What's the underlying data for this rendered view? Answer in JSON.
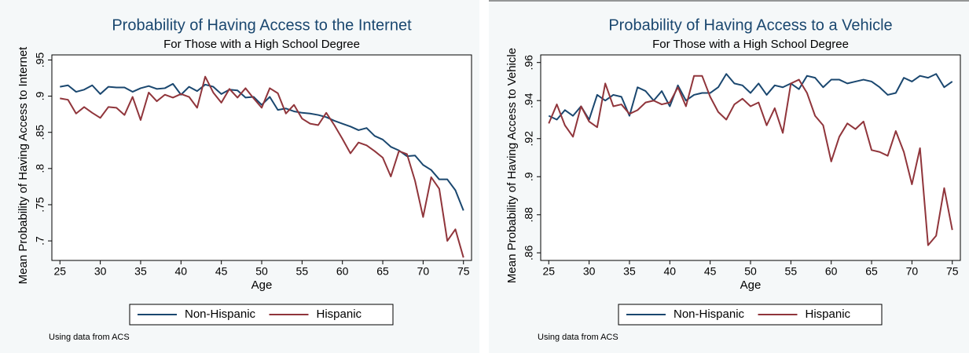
{
  "chart_data": [
    {
      "type": "line",
      "title": "Probability of Having Access to the Internet",
      "subtitle": "For Those with a High School Degree",
      "xlabel": "Age",
      "ylabel": "Mean Probability of Having Access to Internet",
      "note": "Using data from ACS",
      "x": [
        25,
        26,
        27,
        28,
        29,
        30,
        31,
        32,
        33,
        34,
        35,
        36,
        37,
        38,
        39,
        40,
        41,
        42,
        43,
        44,
        45,
        46,
        47,
        48,
        49,
        50,
        51,
        52,
        53,
        54,
        55,
        56,
        57,
        58,
        59,
        60,
        61,
        62,
        63,
        64,
        65,
        66,
        67,
        68,
        69,
        70,
        71,
        72,
        73,
        74,
        75
      ],
      "series": [
        {
          "name": "Non-Hispanic",
          "color": "#1a476f",
          "values": [
            0.913,
            0.915,
            0.906,
            0.909,
            0.915,
            0.903,
            0.913,
            0.912,
            0.912,
            0.906,
            0.911,
            0.914,
            0.91,
            0.911,
            0.917,
            0.902,
            0.913,
            0.907,
            0.916,
            0.913,
            0.903,
            0.909,
            0.908,
            0.898,
            0.899,
            0.888,
            0.899,
            0.881,
            0.883,
            0.879,
            0.877,
            0.876,
            0.874,
            0.871,
            0.866,
            0.862,
            0.858,
            0.853,
            0.856,
            0.845,
            0.84,
            0.83,
            0.825,
            0.817,
            0.818,
            0.805,
            0.798,
            0.785,
            0.785,
            0.77,
            0.742
          ]
        },
        {
          "name": "Hispanic",
          "color": "#90353b",
          "values": [
            0.897,
            0.895,
            0.876,
            0.885,
            0.877,
            0.87,
            0.885,
            0.884,
            0.874,
            0.899,
            0.867,
            0.905,
            0.893,
            0.902,
            0.898,
            0.903,
            0.899,
            0.884,
            0.927,
            0.905,
            0.891,
            0.91,
            0.898,
            0.911,
            0.897,
            0.884,
            0.911,
            0.904,
            0.876,
            0.888,
            0.869,
            0.862,
            0.86,
            0.877,
            0.86,
            0.841,
            0.821,
            0.836,
            0.832,
            0.824,
            0.815,
            0.789,
            0.824,
            0.82,
            0.783,
            0.733,
            0.788,
            0.772,
            0.7,
            0.716,
            0.677
          ]
        }
      ],
      "xlim": [
        24,
        76
      ],
      "ylim": [
        0.673,
        0.957
      ],
      "xticks": [
        25,
        30,
        35,
        40,
        45,
        50,
        55,
        60,
        65,
        70,
        75
      ],
      "yticks": [
        {
          "value": 0.7,
          "label": ".7"
        },
        {
          "value": 0.75,
          "label": ".75"
        },
        {
          "value": 0.8,
          "label": ".8"
        },
        {
          "value": 0.85,
          "label": ".85"
        },
        {
          "value": 0.9,
          "label": ".9"
        },
        {
          "value": 0.95,
          "label": ".95"
        }
      ],
      "grid": false,
      "legend": "bottom"
    },
    {
      "type": "line",
      "title": "Probability of Having Access to a Vehicle",
      "subtitle": "For Those with a High School Degree",
      "xlabel": "Age",
      "ylabel": "Mean Probability of Having Access to Vehicle",
      "note": "Using data from ACS",
      "x": [
        25,
        26,
        27,
        28,
        29,
        30,
        31,
        32,
        33,
        34,
        35,
        36,
        37,
        38,
        39,
        40,
        41,
        42,
        43,
        44,
        45,
        46,
        47,
        48,
        49,
        50,
        51,
        52,
        53,
        54,
        55,
        56,
        57,
        58,
        59,
        60,
        61,
        62,
        63,
        64,
        65,
        66,
        67,
        68,
        69,
        70,
        71,
        72,
        73,
        74,
        75
      ],
      "series": [
        {
          "name": "Non-Hispanic",
          "color": "#1a476f",
          "values": [
            0.932,
            0.93,
            0.935,
            0.932,
            0.937,
            0.93,
            0.943,
            0.94,
            0.943,
            0.942,
            0.932,
            0.947,
            0.945,
            0.94,
            0.945,
            0.937,
            0.948,
            0.94,
            0.943,
            0.944,
            0.944,
            0.947,
            0.954,
            0.949,
            0.948,
            0.944,
            0.949,
            0.943,
            0.948,
            0.947,
            0.949,
            0.946,
            0.953,
            0.952,
            0.947,
            0.951,
            0.951,
            0.949,
            0.95,
            0.951,
            0.95,
            0.947,
            0.943,
            0.944,
            0.952,
            0.95,
            0.953,
            0.952,
            0.954,
            0.947,
            0.95
          ]
        },
        {
          "name": "Hispanic",
          "color": "#90353b",
          "values": [
            0.928,
            0.938,
            0.927,
            0.921,
            0.937,
            0.929,
            0.926,
            0.949,
            0.937,
            0.938,
            0.933,
            0.935,
            0.939,
            0.94,
            0.938,
            0.939,
            0.947,
            0.937,
            0.953,
            0.953,
            0.942,
            0.934,
            0.93,
            0.938,
            0.941,
            0.937,
            0.939,
            0.927,
            0.936,
            0.923,
            0.949,
            0.951,
            0.944,
            0.932,
            0.927,
            0.908,
            0.921,
            0.928,
            0.925,
            0.929,
            0.914,
            0.913,
            0.911,
            0.924,
            0.913,
            0.896,
            0.915,
            0.864,
            0.869,
            0.894,
            0.872
          ]
        }
      ],
      "xlim": [
        24,
        76
      ],
      "ylim": [
        0.856,
        0.964
      ],
      "xticks": [
        25,
        30,
        35,
        40,
        45,
        50,
        55,
        60,
        65,
        70,
        75
      ],
      "yticks": [
        {
          "value": 0.86,
          "label": ".86"
        },
        {
          "value": 0.88,
          "label": ".88"
        },
        {
          "value": 0.9,
          "label": ".9"
        },
        {
          "value": 0.92,
          "label": ".92"
        },
        {
          "value": 0.94,
          "label": ".94"
        },
        {
          "value": 0.96,
          "label": ".96"
        }
      ],
      "grid": false,
      "legend": "bottom"
    }
  ]
}
